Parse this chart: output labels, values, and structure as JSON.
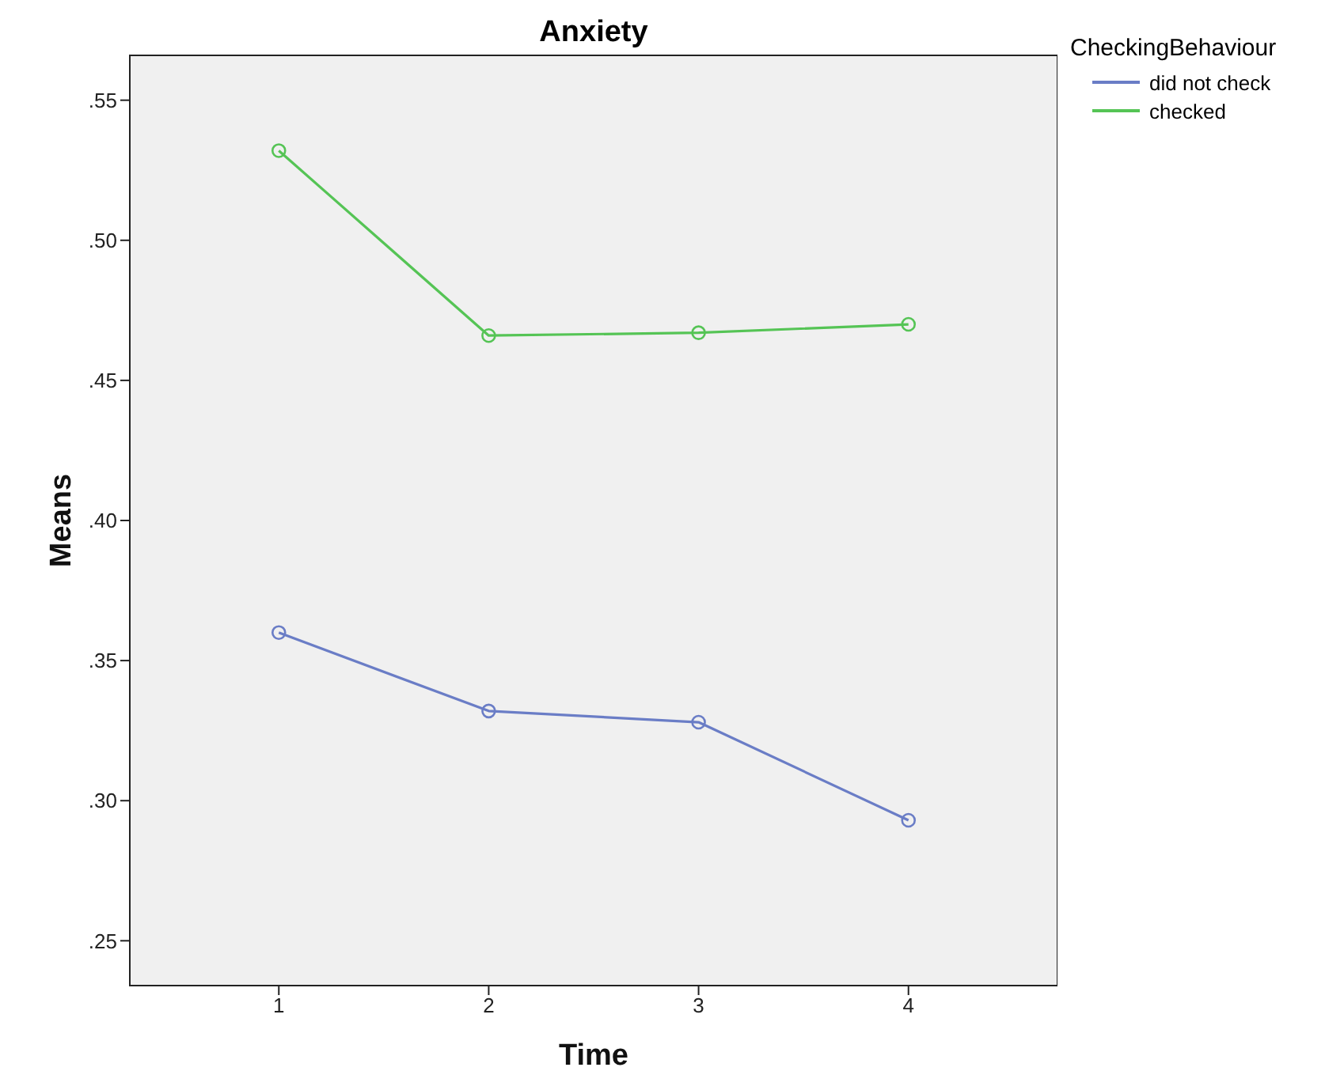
{
  "chart_data": {
    "type": "line",
    "title": "Anxiety",
    "xlabel": "Time",
    "ylabel": "Means",
    "legend_title": "CheckingBehaviour",
    "categories": [
      "1",
      "2",
      "3",
      "4"
    ],
    "series": [
      {
        "name": "did not check",
        "color": "#6a7dc6",
        "values": [
          0.36,
          0.332,
          0.328,
          0.293
        ]
      },
      {
        "name": "checked",
        "color": "#55c455",
        "values": [
          0.532,
          0.466,
          0.467,
          0.47
        ]
      }
    ],
    "ylim": [
      0.234,
      0.566
    ],
    "yticks": [
      {
        "value": 0.25,
        "label": ".25"
      },
      {
        "value": 0.3,
        "label": ".30"
      },
      {
        "value": 0.35,
        "label": ".35"
      },
      {
        "value": 0.4,
        "label": ".40"
      },
      {
        "value": 0.45,
        "label": ".45"
      },
      {
        "value": 0.5,
        "label": ".50"
      },
      {
        "value": 0.55,
        "label": ".55"
      }
    ],
    "grid": false,
    "legend": "top right",
    "marker": "circle",
    "line_style": "solid"
  }
}
